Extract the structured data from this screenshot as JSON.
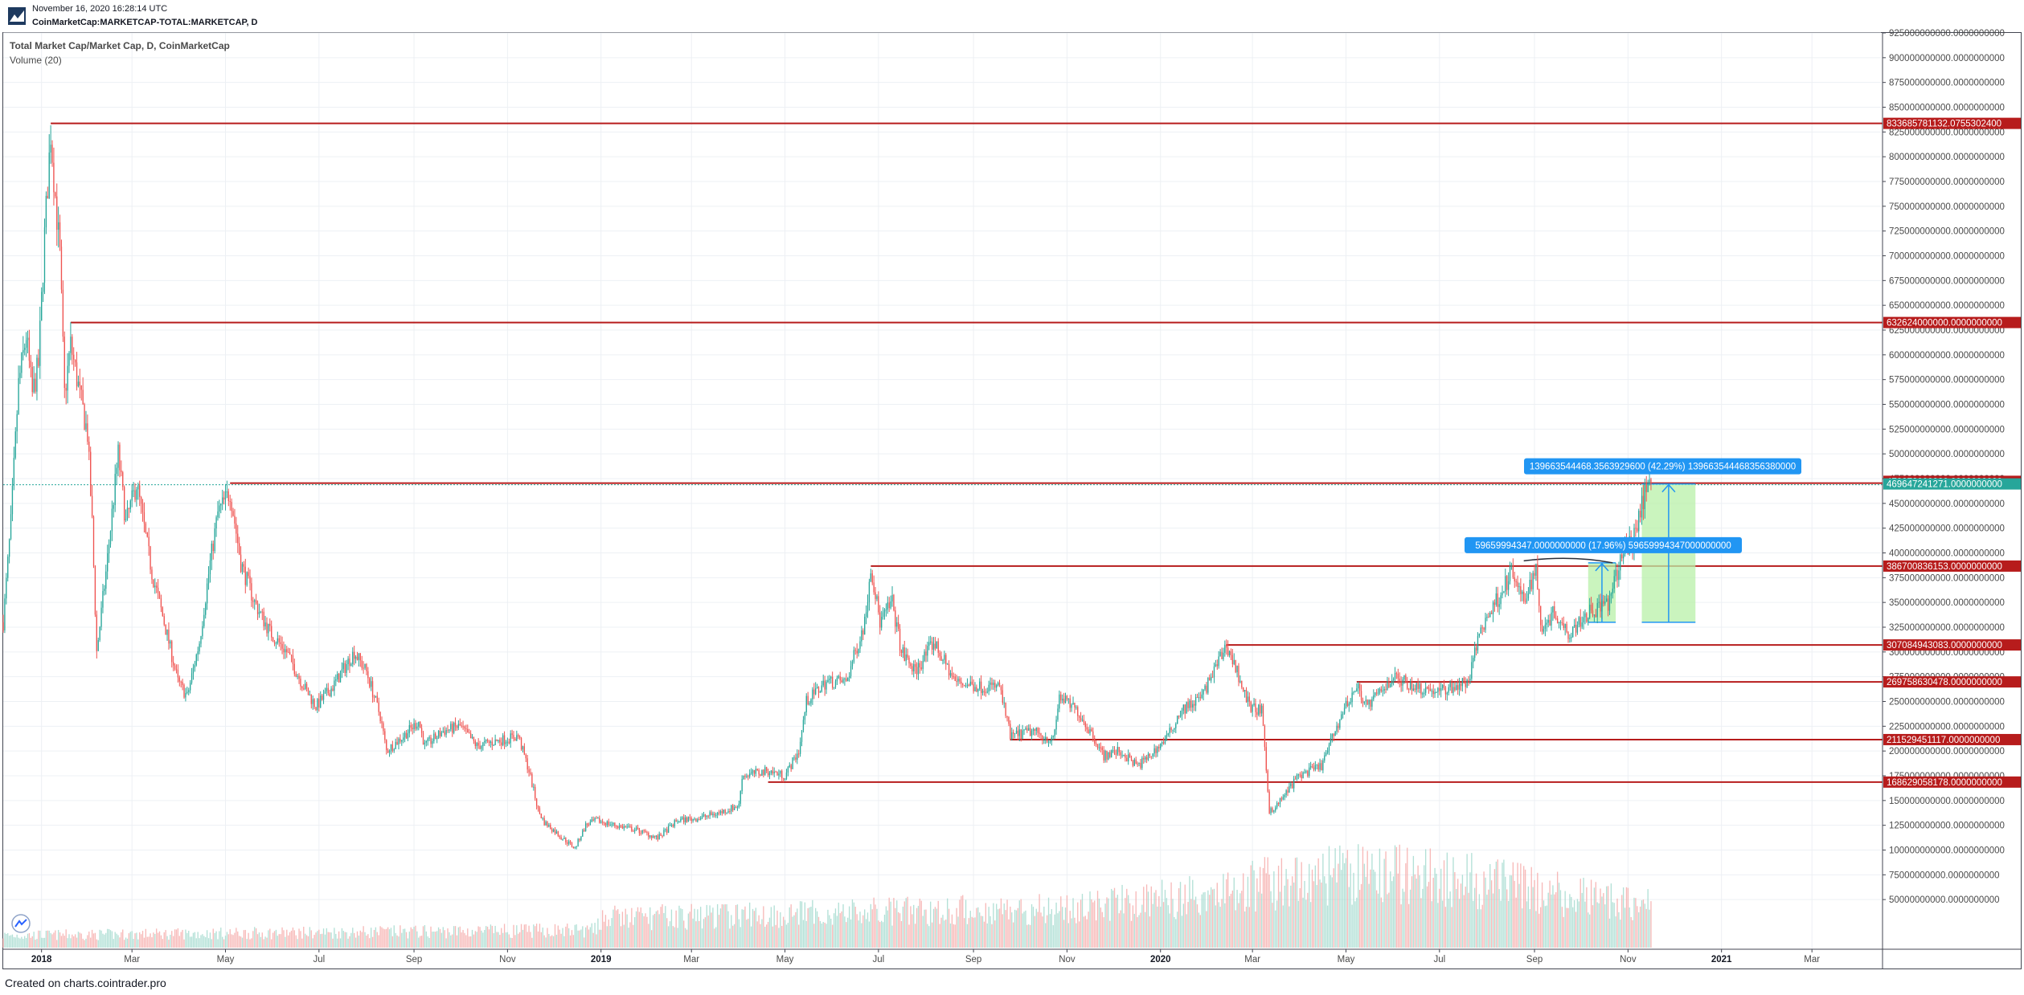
{
  "header": {
    "date": "November 16, 2020 16:28:14 UTC",
    "symbol": "CoinMarketCap:MARKETCAP-TOTAL:MARKETCAP, D"
  },
  "legend": {
    "title": "Total Market Cap/Market Cap, D, CoinMarketCap",
    "volume": "Volume (20)"
  },
  "footer": "Created on charts.cointrader.pro",
  "colors": {
    "up": "#26a69a",
    "down": "#ef5350",
    "up_volume": "#9fd8cc",
    "down_volume": "#f5a8a6",
    "level_line": "#b71c1c",
    "annotation": "#2196f3",
    "target_zone": "#b8f0a8",
    "last_price": "#26a69a",
    "grid": "#edf0f4"
  },
  "chart_data": {
    "type": "candlestick",
    "y_scale": "linear",
    "ylim": [
      25000000000,
      925000000000
    ],
    "y_ticks": [
      "50000000000.0000000000",
      "75000000000.0000000000",
      "100000000000.0000000000",
      "125000000000.0000000000",
      "150000000000.0000000000",
      "175000000000.0000000000",
      "200000000000.0000000000",
      "225000000000.0000000000",
      "250000000000.0000000000",
      "275000000000.0000000000",
      "300000000000.0000000000",
      "325000000000.0000000000",
      "350000000000.0000000000",
      "375000000000.0000000000",
      "400000000000.0000000000",
      "425000000000.0000000000",
      "450000000000.0000000000",
      "475000000000.0000000000",
      "500000000000.0000000000",
      "525000000000.0000000000",
      "550000000000.0000000000",
      "575000000000.0000000000",
      "600000000000.0000000000",
      "625000000000.0000000000",
      "650000000000.0000000000",
      "675000000000.0000000000",
      "700000000000.0000000000",
      "725000000000.0000000000",
      "750000000000.0000000000",
      "775000000000.0000000000",
      "800000000000.0000000000",
      "825000000000.0000000000",
      "850000000000.0000000000",
      "875000000000.0000000000",
      "900000000000.0000000000",
      "925000000000.0000000000"
    ],
    "x_range": [
      "2017-12-07",
      "2021-04-15"
    ],
    "x_ticks": [
      {
        "label": "2018",
        "date": "2018-01-01",
        "bold": true
      },
      {
        "label": "Mar",
        "date": "2018-03-01",
        "bold": false
      },
      {
        "label": "May",
        "date": "2018-05-01",
        "bold": false
      },
      {
        "label": "Jul",
        "date": "2018-07-01",
        "bold": false
      },
      {
        "label": "Sep",
        "date": "2018-09-01",
        "bold": false
      },
      {
        "label": "Nov",
        "date": "2018-11-01",
        "bold": false
      },
      {
        "label": "2019",
        "date": "2019-01-01",
        "bold": true
      },
      {
        "label": "Mar",
        "date": "2019-03-01",
        "bold": false
      },
      {
        "label": "May",
        "date": "2019-05-01",
        "bold": false
      },
      {
        "label": "Jul",
        "date": "2019-07-01",
        "bold": false
      },
      {
        "label": "Sep",
        "date": "2019-09-01",
        "bold": false
      },
      {
        "label": "Nov",
        "date": "2019-11-01",
        "bold": false
      },
      {
        "label": "2020",
        "date": "2020-01-01",
        "bold": true
      },
      {
        "label": "Mar",
        "date": "2020-03-01",
        "bold": false
      },
      {
        "label": "May",
        "date": "2020-05-01",
        "bold": false
      },
      {
        "label": "Jul",
        "date": "2020-07-01",
        "bold": false
      },
      {
        "label": "Sep",
        "date": "2020-09-01",
        "bold": false
      },
      {
        "label": "Nov",
        "date": "2020-11-01",
        "bold": false
      },
      {
        "label": "2021",
        "date": "2021-01-01",
        "bold": true
      },
      {
        "label": "Mar",
        "date": "2021-03-01",
        "bold": false
      }
    ],
    "price_path": [
      [
        "2017-12-07",
        330000000000
      ],
      [
        "2017-12-12",
        430000000000
      ],
      [
        "2017-12-17",
        570000000000
      ],
      [
        "2017-12-22",
        620000000000
      ],
      [
        "2017-12-26",
        560000000000
      ],
      [
        "2017-12-30",
        590000000000
      ],
      [
        "2018-01-03",
        720000000000
      ],
      [
        "2018-01-07",
        825000000000
      ],
      [
        "2018-01-10",
        760000000000
      ],
      [
        "2018-01-13",
        700000000000
      ],
      [
        "2018-01-16",
        560000000000
      ],
      [
        "2018-01-20",
        610000000000
      ],
      [
        "2018-01-26",
        560000000000
      ],
      [
        "2018-01-31",
        520000000000
      ],
      [
        "2018-02-03",
        430000000000
      ],
      [
        "2018-02-06",
        300000000000
      ],
      [
        "2018-02-12",
        380000000000
      ],
      [
        "2018-02-20",
        500000000000
      ],
      [
        "2018-02-25",
        430000000000
      ],
      [
        "2018-03-04",
        470000000000
      ],
      [
        "2018-03-14",
        380000000000
      ],
      [
        "2018-03-22",
        330000000000
      ],
      [
        "2018-03-31",
        270000000000
      ],
      [
        "2018-04-06",
        255000000000
      ],
      [
        "2018-04-14",
        310000000000
      ],
      [
        "2018-04-21",
        390000000000
      ],
      [
        "2018-04-26",
        440000000000
      ],
      [
        "2018-05-04",
        462000000000
      ],
      [
        "2018-05-11",
        390000000000
      ],
      [
        "2018-05-20",
        350000000000
      ],
      [
        "2018-05-30",
        320000000000
      ],
      [
        "2018-06-10",
        300000000000
      ],
      [
        "2018-06-20",
        268000000000
      ],
      [
        "2018-06-29",
        245000000000
      ],
      [
        "2018-07-10",
        265000000000
      ],
      [
        "2018-07-24",
        300000000000
      ],
      [
        "2018-08-01",
        280000000000
      ],
      [
        "2018-08-10",
        235000000000
      ],
      [
        "2018-08-14",
        200000000000
      ],
      [
        "2018-08-25",
        215000000000
      ],
      [
        "2018-09-04",
        230000000000
      ],
      [
        "2018-09-08",
        205000000000
      ],
      [
        "2018-09-20",
        220000000000
      ],
      [
        "2018-10-01",
        225000000000
      ],
      [
        "2018-10-12",
        205000000000
      ],
      [
        "2018-10-25",
        210000000000
      ],
      [
        "2018-11-08",
        215000000000
      ],
      [
        "2018-11-15",
        180000000000
      ],
      [
        "2018-11-21",
        140000000000
      ],
      [
        "2018-11-25",
        128000000000
      ],
      [
        "2018-12-07",
        112000000000
      ],
      [
        "2018-12-15",
        102000000000
      ],
      [
        "2018-12-22",
        125000000000
      ],
      [
        "2018-12-29",
        130000000000
      ],
      [
        "2019-01-10",
        125000000000
      ],
      [
        "2019-01-25",
        120000000000
      ],
      [
        "2019-02-07",
        112000000000
      ],
      [
        "2019-02-20",
        130000000000
      ],
      [
        "2019-03-05",
        132000000000
      ],
      [
        "2019-03-20",
        138000000000
      ],
      [
        "2019-04-01",
        145000000000
      ],
      [
        "2019-04-03",
        175000000000
      ],
      [
        "2019-04-20",
        180000000000
      ],
      [
        "2019-05-01",
        175000000000
      ],
      [
        "2019-05-10",
        200000000000
      ],
      [
        "2019-05-15",
        250000000000
      ],
      [
        "2019-05-28",
        270000000000
      ],
      [
        "2019-06-10",
        270000000000
      ],
      [
        "2019-06-22",
        330000000000
      ],
      [
        "2019-06-26",
        387000000000
      ],
      [
        "2019-07-02",
        330000000000
      ],
      [
        "2019-07-10",
        350000000000
      ],
      [
        "2019-07-16",
        300000000000
      ],
      [
        "2019-07-25",
        280000000000
      ],
      [
        "2019-08-06",
        310000000000
      ],
      [
        "2019-08-20",
        270000000000
      ],
      [
        "2019-09-05",
        265000000000
      ],
      [
        "2019-09-18",
        265000000000
      ],
      [
        "2019-09-25",
        215000000000
      ],
      [
        "2019-10-10",
        220000000000
      ],
      [
        "2019-10-23",
        210000000000
      ],
      [
        "2019-10-27",
        255000000000
      ],
      [
        "2019-11-08",
        240000000000
      ],
      [
        "2019-11-20",
        210000000000
      ],
      [
        "2019-11-25",
        195000000000
      ],
      [
        "2019-12-05",
        200000000000
      ],
      [
        "2019-12-17",
        185000000000
      ],
      [
        "2019-12-25",
        195000000000
      ],
      [
        "2020-01-06",
        215000000000
      ],
      [
        "2020-01-14",
        240000000000
      ],
      [
        "2020-01-28",
        255000000000
      ],
      [
        "2020-02-13",
        307000000000
      ],
      [
        "2020-02-20",
        280000000000
      ],
      [
        "2020-02-28",
        245000000000
      ],
      [
        "2020-03-07",
        240000000000
      ],
      [
        "2020-03-12",
        140000000000
      ],
      [
        "2020-03-17",
        145000000000
      ],
      [
        "2020-03-31",
        175000000000
      ],
      [
        "2020-04-15",
        185000000000
      ],
      [
        "2020-04-29",
        240000000000
      ],
      [
        "2020-05-08",
        265000000000
      ],
      [
        "2020-05-15",
        245000000000
      ],
      [
        "2020-06-01",
        275000000000
      ],
      [
        "2020-06-15",
        265000000000
      ],
      [
        "2020-07-01",
        260000000000
      ],
      [
        "2020-07-20",
        270000000000
      ],
      [
        "2020-07-27",
        320000000000
      ],
      [
        "2020-08-10",
        360000000000
      ],
      [
        "2020-08-17",
        380000000000
      ],
      [
        "2020-08-25",
        350000000000
      ],
      [
        "2020-09-02",
        385000000000
      ],
      [
        "2020-09-05",
        325000000000
      ],
      [
        "2020-09-14",
        340000000000
      ],
      [
        "2020-09-23",
        320000000000
      ],
      [
        "2020-10-06",
        340000000000
      ],
      [
        "2020-10-20",
        350000000000
      ],
      [
        "2020-10-28",
        400000000000
      ],
      [
        "2020-11-04",
        410000000000
      ],
      [
        "2020-11-08",
        440000000000
      ],
      [
        "2020-11-12",
        460000000000
      ],
      [
        "2020-11-16",
        469647241271
      ]
    ],
    "horizontal_levels": [
      {
        "label": "833685781132.0755302400",
        "value": 833685781132,
        "start": "2018-01-07"
      },
      {
        "label": "632624000000.0000000000",
        "value": 632624000000,
        "start": "2018-01-20"
      },
      {
        "label": "472272000000.0000000000",
        "value": 472272000000,
        "start": null
      },
      {
        "label": "386700836153.0000000000",
        "value": 386700836153,
        "start": "2019-06-26"
      },
      {
        "label": "307084943083.0000000000",
        "value": 307084943083,
        "start": "2020-02-13"
      },
      {
        "label": "269758630478.0000000000",
        "value": 269758630478,
        "start": "2020-05-08"
      },
      {
        "label": "211529451117.0000000000",
        "value": 211529451117,
        "start": "2019-09-25"
      },
      {
        "label": "168629058178.0000000000",
        "value": 168629058178,
        "start": "2019-04-20"
      }
    ],
    "resistance_line": {
      "value": 469647241271,
      "start": "2018-05-04"
    },
    "last_price": {
      "label": "469647241271.0000000000",
      "value": 469647241271
    },
    "measurements": [
      {
        "label": "59659994347.0000000000 (17.96%) 59659994347000000000",
        "x_start": "2020-10-06",
        "x_end": "2020-10-24",
        "y_low": 330000000000,
        "y_high": 390000000000
      },
      {
        "label": "139663544468.3563929600 (42.29%) 139663544468356380000",
        "x_start": "2020-11-10",
        "x_end": "2020-12-15",
        "y_low": 330000000000,
        "y_high": 469647241271
      }
    ],
    "volume": {
      "max_value": 1,
      "volume_label": "Volume (20)"
    }
  }
}
